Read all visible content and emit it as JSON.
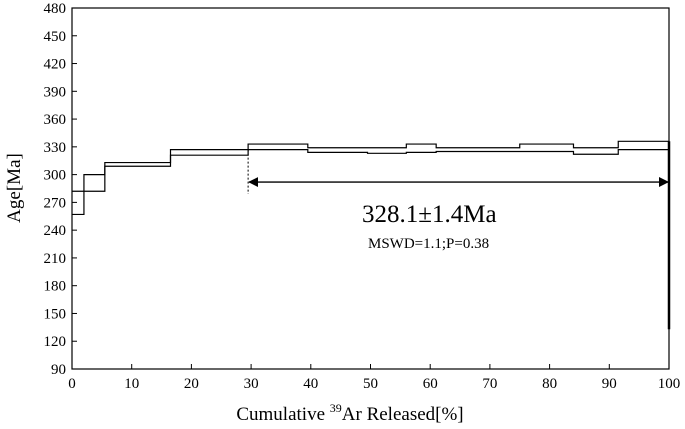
{
  "chart_data": {
    "type": "step_spectrum",
    "xlabel_parts": [
      "Cumulative ",
      "39",
      "Ar Released[%]"
    ],
    "ylabel": "Age[Ma]",
    "xlim": [
      0,
      100
    ],
    "ylim": [
      90,
      480
    ],
    "xticks": [
      0,
      10,
      20,
      30,
      40,
      50,
      60,
      70,
      80,
      90,
      100
    ],
    "yticks": [
      90,
      120,
      150,
      180,
      210,
      240,
      270,
      300,
      330,
      360,
      390,
      420,
      450,
      480
    ],
    "grid": false,
    "steps": [
      {
        "x0": 0,
        "x1": 2,
        "top": 282,
        "bottom": 257
      },
      {
        "x0": 2,
        "x1": 5.5,
        "top": 300,
        "bottom": 282
      },
      {
        "x0": 5.5,
        "x1": 16.5,
        "top": 313,
        "bottom": 309
      },
      {
        "x0": 16.5,
        "x1": 29.5,
        "top": 327,
        "bottom": 321
      },
      {
        "x0": 29.5,
        "x1": 39.5,
        "top": 333,
        "bottom": 327
      },
      {
        "x0": 39.5,
        "x1": 49.5,
        "top": 329,
        "bottom": 324
      },
      {
        "x0": 49.5,
        "x1": 56.0,
        "top": 329,
        "bottom": 323
      },
      {
        "x0": 56.0,
        "x1": 61.0,
        "top": 333,
        "bottom": 324
      },
      {
        "x0": 61.0,
        "x1": 75.0,
        "top": 329,
        "bottom": 325
      },
      {
        "x0": 75.0,
        "x1": 84.0,
        "top": 333,
        "bottom": 325
      },
      {
        "x0": 84.0,
        "x1": 91.5,
        "top": 329,
        "bottom": 322
      },
      {
        "x0": 91.5,
        "x1": 100,
        "top": 336,
        "bottom": 327
      }
    ],
    "final_drop_to": 133,
    "plateau": {
      "x_start": 29.5,
      "x_end": 100,
      "arrow_y": 292
    },
    "annotation_age": "328.1±1.4Ma",
    "annotation_stats": "MSWD=1.1;P=0.38"
  }
}
